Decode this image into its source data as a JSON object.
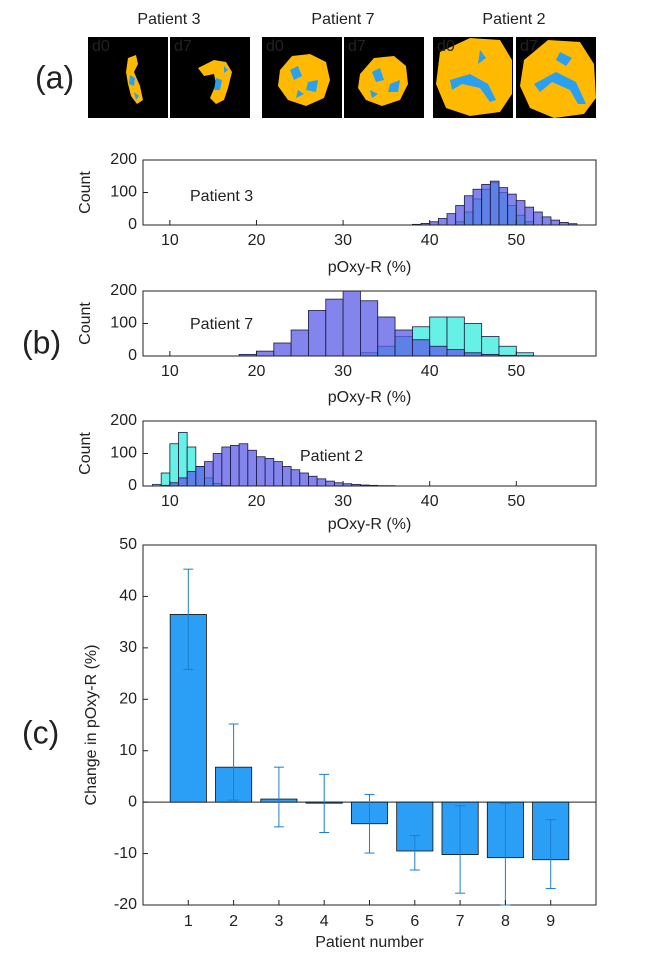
{
  "panel_labels": [
    "(a)",
    "(b)",
    "(c)"
  ],
  "images": [
    {
      "title": "Patient 3",
      "labels": [
        "d0",
        "d7"
      ]
    },
    {
      "title": "Patient 7",
      "labels": [
        "d0",
        "d7"
      ]
    },
    {
      "title": "Patient 2",
      "labels": [
        "d0",
        "d7"
      ]
    }
  ],
  "label_colors": [
    "#7fe8f0",
    "#8a84f0"
  ],
  "chart_data": [
    {
      "type": "histogram",
      "annotation": "Patient 3",
      "xlabel": "pOxy-R (%)",
      "ylabel": "Count",
      "bins": [
        38,
        39,
        40,
        41,
        42,
        43,
        44,
        45,
        46,
        47,
        48,
        49,
        50,
        51,
        52,
        53,
        54,
        55,
        56,
        57
      ],
      "series": [
        {
          "color": "#66f0e6",
          "values": [
            0,
            0,
            0,
            0,
            0,
            10,
            40,
            80,
            110,
            130,
            100,
            60,
            30,
            10,
            0,
            0,
            0,
            0,
            0
          ]
        },
        {
          "color": "#5b5ce6",
          "values": [
            2,
            5,
            10,
            20,
            35,
            60,
            90,
            110,
            125,
            135,
            115,
            95,
            75,
            55,
            40,
            25,
            15,
            8,
            4
          ]
        }
      ],
      "xlim": [
        6.9,
        59.2
      ],
      "xticks": [
        10,
        20,
        30,
        40,
        50
      ],
      "ylim": [
        0,
        200
      ],
      "yticks": [
        0,
        100,
        200
      ]
    },
    {
      "type": "histogram",
      "annotation": "Patient 7",
      "xlabel": "pOxy-R (%)",
      "ylabel": "Count",
      "bins": [
        18,
        20,
        22,
        24,
        26,
        28,
        30,
        32,
        34,
        36,
        38,
        40,
        42,
        44,
        46,
        48,
        50,
        52
      ],
      "series": [
        {
          "color": "#66f0e6",
          "values": [
            0,
            0,
            0,
            0,
            0,
            0,
            0,
            10,
            30,
            60,
            90,
            120,
            120,
            100,
            60,
            30,
            10
          ]
        },
        {
          "color": "#5b5ce6",
          "values": [
            5,
            15,
            40,
            80,
            140,
            175,
            200,
            170,
            120,
            80,
            50,
            30,
            20,
            10,
            5,
            2,
            1
          ]
        }
      ],
      "xlim": [
        6.9,
        59.2
      ],
      "xticks": [
        10,
        20,
        30,
        40,
        50
      ],
      "ylim": [
        0,
        200
      ],
      "yticks": [
        0,
        100,
        200
      ]
    },
    {
      "type": "histogram",
      "annotation": "Patient 2",
      "xlabel": "pOxy-R (%)",
      "ylabel": "Count",
      "bins": [
        8,
        9,
        10,
        11,
        12,
        13,
        14,
        15,
        16,
        17,
        18,
        19,
        20,
        21,
        22,
        23,
        24,
        25,
        26,
        27,
        28,
        29,
        30,
        31,
        32,
        33,
        34,
        35,
        36
      ],
      "series": [
        {
          "color": "#66f0e6",
          "values": [
            5,
            40,
            130,
            165,
            120,
            60,
            25,
            8,
            2,
            0,
            0,
            0,
            0,
            0,
            0,
            0,
            0,
            0,
            0,
            0,
            0,
            0,
            0,
            0,
            0,
            0,
            0,
            0
          ]
        },
        {
          "color": "#5b5ce6",
          "values": [
            0,
            2,
            10,
            25,
            45,
            60,
            75,
            100,
            120,
            125,
            130,
            110,
            90,
            85,
            75,
            60,
            50,
            40,
            30,
            22,
            15,
            10,
            7,
            5,
            3,
            2,
            1,
            1
          ]
        }
      ],
      "xlim": [
        6.9,
        59.2
      ],
      "xticks": [
        10,
        20,
        30,
        40,
        50
      ],
      "ylim": [
        0,
        200
      ],
      "yticks": [
        0,
        100,
        200
      ]
    },
    {
      "type": "bar",
      "xlabel": "Patient number",
      "ylabel": "Change in pOxy-R (%)",
      "categories": [
        "1",
        "2",
        "3",
        "4",
        "5",
        "6",
        "7",
        "8",
        "9"
      ],
      "values": [
        36.5,
        6.8,
        0.6,
        -0.2,
        -4.2,
        -9.5,
        -10.2,
        -10.8,
        -11.2
      ],
      "error_plus": [
        8.8,
        8.4,
        6.2,
        5.6,
        5.7,
        3.0,
        9.5,
        10.5,
        7.8
      ],
      "error_minus": [
        10.7,
        6.4,
        5.4,
        5.7,
        5.7,
        3.7,
        7.5,
        9.2,
        5.6
      ],
      "color": "#2b9ff5",
      "error_color": "#1a7fd0",
      "ylim": [
        -20,
        50
      ],
      "yticks": [
        -20,
        -10,
        0,
        10,
        20,
        30,
        40,
        50
      ]
    }
  ]
}
